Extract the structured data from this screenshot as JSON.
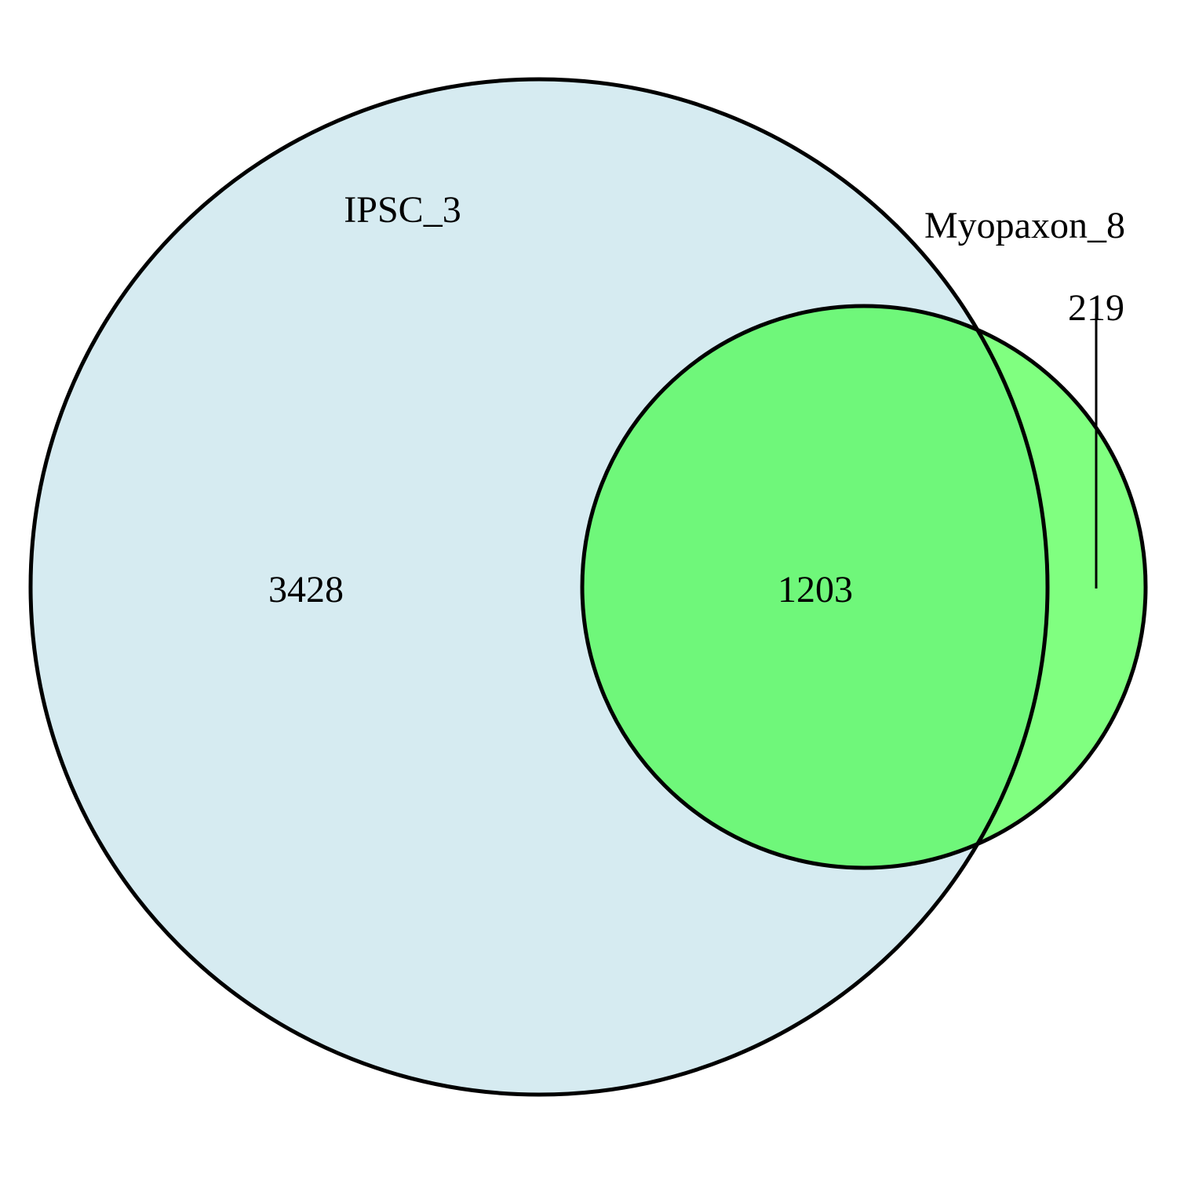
{
  "venn": {
    "sets": [
      {
        "name": "IPSC_3",
        "color": "#d6ebf1",
        "only_count": "3428"
      },
      {
        "name": "Myopaxon_8",
        "color": "#80ff80",
        "only_count": "219"
      }
    ],
    "intersection": {
      "count": "1203",
      "color": "#6ff77a"
    },
    "stroke_color": "#000000"
  }
}
